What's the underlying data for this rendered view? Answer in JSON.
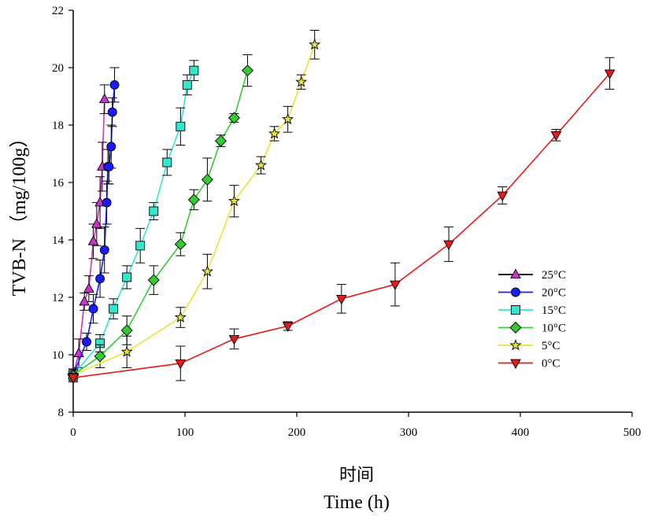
{
  "chart_data": {
    "type": "line",
    "xlabel_top": "时间",
    "xlabel": "Time (h)",
    "ylabel": "TVB-N （mg/100g）",
    "xlim": [
      0,
      500
    ],
    "ylim": [
      8,
      22
    ],
    "xticks": [
      0,
      100,
      200,
      300,
      400,
      500
    ],
    "yticks": [
      8,
      10,
      12,
      14,
      16,
      18,
      20,
      22
    ],
    "grid": false,
    "legend_position": "right",
    "series": [
      {
        "name": "25°C",
        "color": "#cc33cc",
        "marker": "triangle-up",
        "x": [
          0,
          5,
          10,
          14,
          18,
          21,
          24,
          26,
          28
        ],
        "y": [
          9.3,
          10.05,
          11.85,
          12.3,
          13.95,
          14.55,
          15.3,
          16.55,
          18.9
        ],
        "err": [
          0.15,
          0.5,
          0.3,
          0.45,
          0.6,
          0.75,
          0.9,
          0.85,
          0.5
        ]
      },
      {
        "name": "20°C",
        "color": "#1a1aff",
        "marker": "circle",
        "x": [
          0,
          12,
          18,
          24,
          28,
          30,
          31,
          32,
          34,
          35,
          37
        ],
        "y": [
          9.3,
          10.45,
          11.6,
          12.65,
          13.65,
          15.3,
          16.55,
          16.55,
          17.25,
          18.45,
          19.4
        ],
        "err": [
          0.2,
          0.3,
          0.5,
          0.65,
          0.8,
          0.75,
          0.6,
          0.6,
          0.75,
          0.5,
          0.6
        ]
      },
      {
        "name": "15°C",
        "color": "#33e6cc",
        "marker": "square",
        "x": [
          0,
          24,
          36,
          48,
          60,
          72,
          84,
          96,
          102,
          108
        ],
        "y": [
          9.3,
          10.4,
          11.6,
          12.7,
          13.8,
          15.0,
          16.7,
          17.95,
          19.4,
          19.9
        ],
        "err": [
          0.2,
          0.3,
          0.35,
          0.4,
          0.6,
          0.3,
          0.45,
          0.65,
          0.35,
          0.35
        ]
      },
      {
        "name": "10°C",
        "color": "#33cc33",
        "marker": "diamond",
        "x": [
          0,
          24,
          48,
          72,
          96,
          108,
          120,
          132,
          144,
          156
        ],
        "y": [
          9.3,
          9.95,
          10.85,
          12.6,
          13.85,
          15.4,
          16.1,
          17.45,
          18.25,
          19.9
        ],
        "err": [
          0.2,
          0.4,
          0.5,
          0.5,
          0.4,
          0.35,
          0.75,
          0.2,
          0.15,
          0.55
        ]
      },
      {
        "name": "5°C",
        "color": "#e6e633",
        "marker": "star",
        "x": [
          0,
          48,
          96,
          120,
          144,
          168,
          180,
          192,
          204,
          216
        ],
        "y": [
          9.3,
          10.1,
          11.3,
          12.9,
          15.35,
          16.6,
          17.7,
          18.2,
          19.5,
          20.8
        ],
        "err": [
          0.2,
          0.55,
          0.35,
          0.6,
          0.55,
          0.3,
          0.25,
          0.45,
          0.25,
          0.5
        ]
      },
      {
        "name": "0°C",
        "color": "#e61a1a",
        "marker": "triangle-down",
        "x": [
          0,
          96,
          144,
          192,
          240,
          288,
          336,
          384,
          432,
          480
        ],
        "y": [
          9.2,
          9.7,
          10.55,
          11.0,
          11.95,
          12.45,
          13.85,
          15.55,
          17.65,
          19.8
        ],
        "err": [
          0.15,
          0.6,
          0.35,
          0.15,
          0.5,
          0.75,
          0.6,
          0.3,
          0.2,
          0.55
        ]
      }
    ]
  }
}
